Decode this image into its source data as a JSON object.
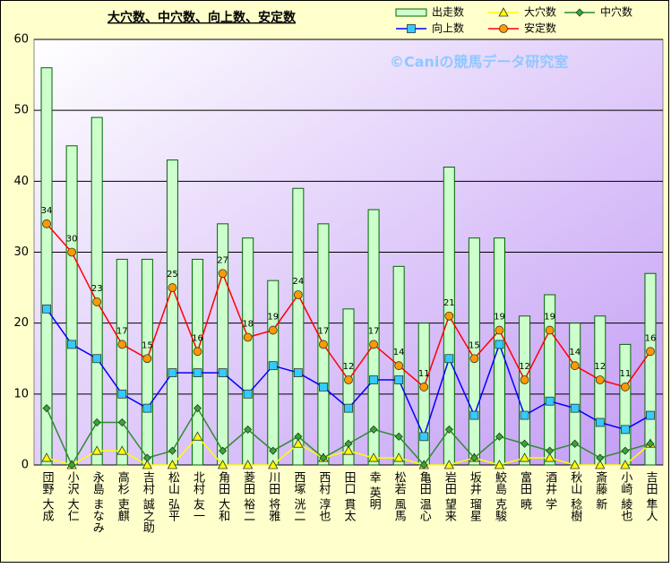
{
  "chart_data": {
    "type": "combo",
    "title": "大穴数、中穴数、向上数、安定数",
    "watermark": "©Caniの競馬データ研究室",
    "categories": [
      "団野 大成",
      "小沢 大仁",
      "永島 まなみ",
      "高杉 吏麒",
      "吉村 誠之助",
      "松山 弘平",
      "北村 友一",
      "角田 大和",
      "菱田 裕二",
      "川田 将雅",
      "西塚 洸二",
      "西村 淳也",
      "田口 貫太",
      "幸 英明",
      "松若 風馬",
      "亀田 温心",
      "岩田 望来",
      "坂井 瑠星",
      "鮫島 克駿",
      "富田 暁",
      "酒井 学",
      "秋山 稔樹",
      "斎藤 新",
      "小崎 綾也",
      "吉田 隼人"
    ],
    "series": [
      {
        "name": "出走数",
        "type": "bar",
        "color": "#ccffcc",
        "edge": "#006600",
        "values": [
          56,
          45,
          49,
          29,
          29,
          43,
          29,
          34,
          32,
          26,
          39,
          34,
          22,
          36,
          28,
          20,
          42,
          32,
          32,
          21,
          24,
          20,
          21,
          17,
          27
        ]
      },
      {
        "name": "大穴数",
        "type": "line",
        "color": "#ffff00",
        "marker": "triangle",
        "marker_color": "#ffff00",
        "values": [
          1,
          0,
          2,
          2,
          0,
          0,
          4,
          0,
          0,
          0,
          3,
          1,
          2,
          1,
          1,
          0,
          0,
          1,
          0,
          1,
          1,
          0,
          0,
          0,
          3
        ]
      },
      {
        "name": "中穴数",
        "type": "line",
        "color": "#2e8b2e",
        "marker": "diamond",
        "marker_color": "#33aa33",
        "values": [
          8,
          0,
          6,
          6,
          1,
          2,
          8,
          2,
          5,
          2,
          4,
          1,
          3,
          5,
          4,
          0,
          5,
          1,
          4,
          3,
          2,
          3,
          1,
          2,
          3
        ]
      },
      {
        "name": "向上数",
        "type": "line",
        "color": "#0000ff",
        "marker": "square",
        "marker_color": "#33ccff",
        "values": [
          22,
          17,
          15,
          10,
          8,
          13,
          13,
          13,
          10,
          14,
          13,
          11,
          8,
          12,
          12,
          4,
          15,
          7,
          17,
          7,
          9,
          8,
          6,
          5,
          7
        ]
      },
      {
        "name": "安定数",
        "type": "line",
        "color": "#ff0000",
        "marker": "circle",
        "marker_color": "#ff9900",
        "data_labels": true,
        "values": [
          34,
          30,
          23,
          17,
          15,
          25,
          16,
          27,
          18,
          19,
          24,
          17,
          12,
          17,
          14,
          11,
          21,
          15,
          19,
          12,
          19,
          14,
          12,
          11,
          16
        ]
      }
    ],
    "ylim": [
      0,
      60
    ],
    "yticks": [
      0,
      10,
      20,
      30,
      40,
      50,
      60
    ],
    "grid": true,
    "legend": "top-right"
  }
}
